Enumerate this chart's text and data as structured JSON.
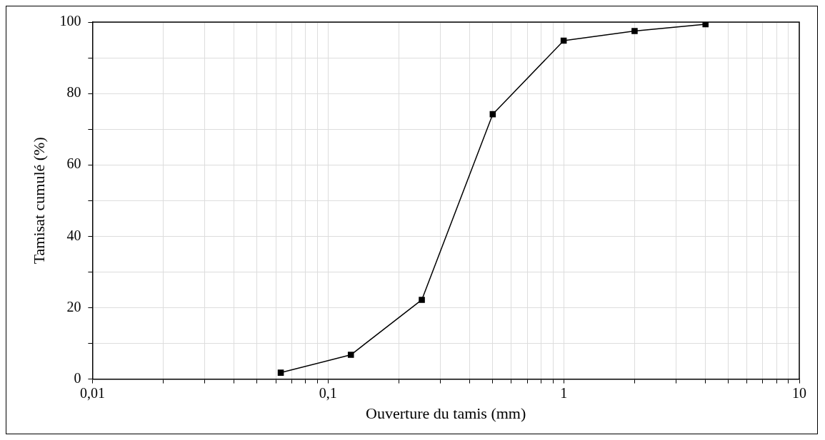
{
  "chart_data": {
    "type": "line",
    "xlabel": "Ouverture du tamis (mm)",
    "ylabel": "Tamisat cumulé (%)",
    "series": [
      {
        "color": "#000000",
        "x": [
          0.063,
          0.125,
          0.25,
          0.5,
          1,
          2,
          4
        ],
        "values": [
          1.8,
          6.8,
          22.2,
          74.2,
          94.8,
          97.5,
          99.4
        ]
      }
    ],
    "log": "x",
    "xlim": [
      0.01,
      10
    ],
    "ylim": [
      0,
      100
    ],
    "xticks": [
      {
        "value": 0.01,
        "label": "0,01"
      },
      {
        "value": 0.02,
        "label": null
      },
      {
        "value": 0.03,
        "label": null
      },
      {
        "value": 0.04,
        "label": null
      },
      {
        "value": 0.05,
        "label": null
      },
      {
        "value": 0.06,
        "label": null
      },
      {
        "value": 0.07,
        "label": null
      },
      {
        "value": 0.08,
        "label": null
      },
      {
        "value": 0.09,
        "label": null
      },
      {
        "value": 0.1,
        "label": "0,1"
      },
      {
        "value": 0.2,
        "label": null
      },
      {
        "value": 0.3,
        "label": null
      },
      {
        "value": 0.4,
        "label": null
      },
      {
        "value": 0.5,
        "label": null
      },
      {
        "value": 0.6,
        "label": null
      },
      {
        "value": 0.7,
        "label": null
      },
      {
        "value": 0.8,
        "label": null
      },
      {
        "value": 0.9,
        "label": null
      },
      1,
      {
        "value": 2,
        "label": null
      },
      {
        "value": 3,
        "label": null
      },
      {
        "value": 4,
        "label": null
      },
      {
        "value": 5,
        "label": null
      },
      {
        "value": 6,
        "label": null
      },
      {
        "value": 7,
        "label": null
      },
      {
        "value": 8,
        "label": null
      },
      {
        "value": 9,
        "label": null
      },
      10
    ],
    "yticks": [
      0,
      {
        "value": 10,
        "label": null
      },
      20,
      {
        "value": 30,
        "label": null
      },
      40,
      {
        "value": 50,
        "label": null
      },
      60,
      {
        "value": 70,
        "label": null
      },
      80,
      {
        "value": 90,
        "label": null
      },
      100
    ],
    "grid": true,
    "marker": "square",
    "line_style": "solid",
    "legend": false
  }
}
